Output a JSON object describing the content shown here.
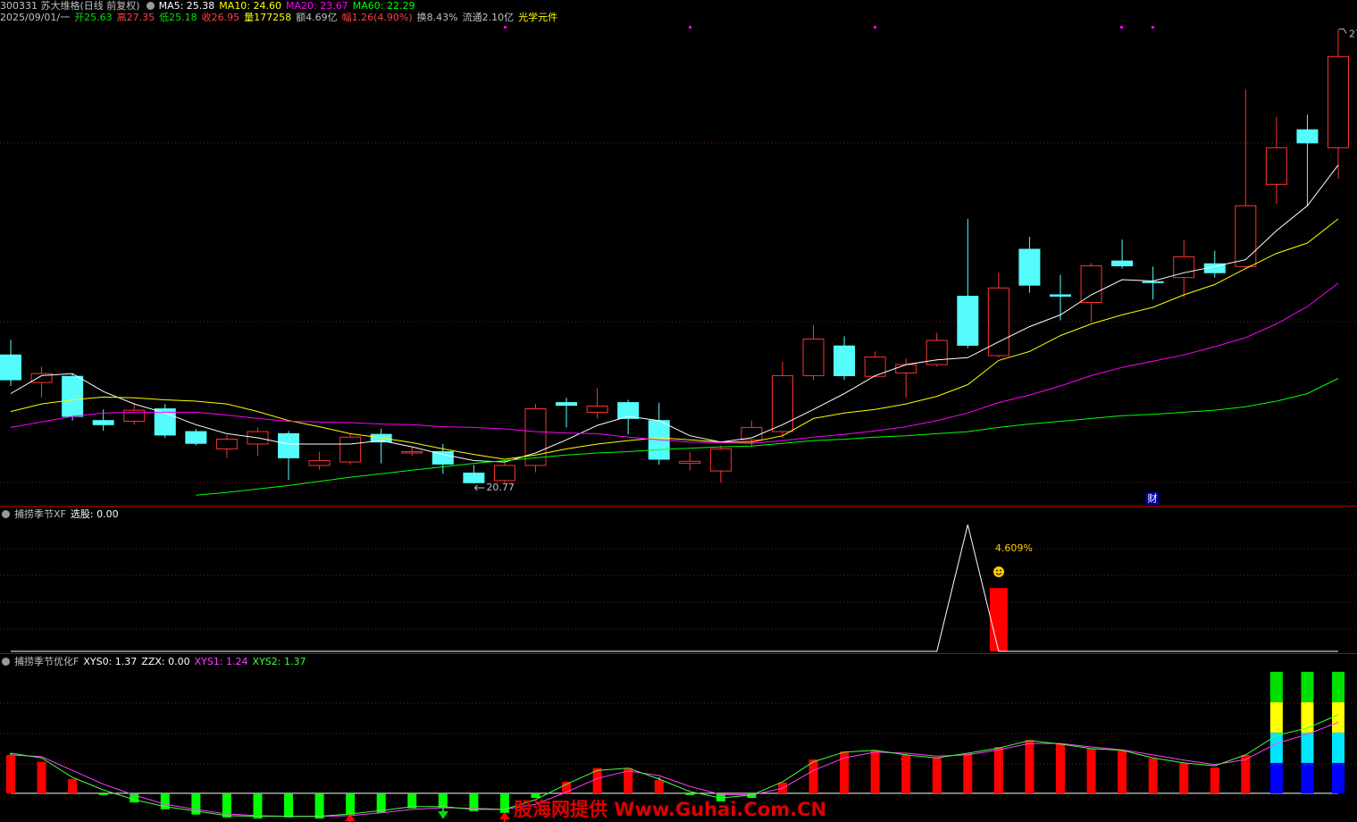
{
  "chart_data": [
    {
      "type": "candlestick",
      "title": "300331 苏大维格(日线 前复权)",
      "info": [
        {
          "text": "2025/09/01/一",
          "color": "#c0c0c0"
        },
        {
          "text": "开25.63",
          "color": "#00e000"
        },
        {
          "text": "高27.35",
          "color": "#ff4040"
        },
        {
          "text": "低25.18",
          "color": "#00e000"
        },
        {
          "text": "收26.95",
          "color": "#ff4040"
        },
        {
          "text": "量177258",
          "color": "#ffff00"
        },
        {
          "text": "额4.69亿",
          "color": "#c0c0c0"
        },
        {
          "text": "幅1.26(4.90%)",
          "color": "#ff4040"
        },
        {
          "text": "换8.43%",
          "color": "#c0c0c0"
        },
        {
          "text": "流通2.10亿",
          "color": "#c0c0c0"
        },
        {
          "text": "光学元件",
          "color": "#ffff00"
        }
      ],
      "event_label": "财",
      "up_color": "#ff3232",
      "down_color": "#54fcfc",
      "ylim": [
        20.46,
        27.51
      ],
      "open": [
        22.63,
        22.23,
        22.32,
        21.68,
        21.67,
        21.85,
        21.52,
        21.27,
        21.34,
        21.49,
        21.03,
        21.08,
        21.48,
        21.21,
        21.23,
        20.92,
        20.81,
        21.03,
        21.94,
        21.8,
        21.94,
        21.68,
        21.06,
        20.95,
        21.4,
        21.52,
        22.33,
        22.76,
        22.32,
        22.37,
        22.49,
        23.48,
        22.62,
        24.16,
        23.5,
        23.39,
        23.99,
        23.69,
        23.75,
        23.95,
        23.91,
        25.1,
        25.89,
        25.63
      ],
      "high": [
        22.85,
        22.46,
        22.36,
        21.84,
        21.94,
        21.92,
        21.56,
        21.47,
        21.58,
        21.53,
        21.23,
        21.49,
        21.56,
        21.3,
        21.34,
        21.04,
        21.1,
        21.92,
        22.01,
        22.15,
        21.98,
        21.94,
        21.23,
        21.32,
        21.68,
        22.53,
        23.06,
        22.9,
        22.68,
        22.58,
        22.95,
        24.6,
        23.82,
        24.34,
        23.79,
        23.96,
        24.3,
        23.91,
        24.3,
        24.14,
        26.47,
        26.08,
        26.11,
        27.35
      ],
      "low": [
        22.18,
        22.01,
        21.68,
        21.53,
        21.62,
        21.43,
        21.32,
        21.14,
        21.17,
        20.82,
        20.97,
        21.04,
        21.06,
        21.17,
        20.91,
        20.77,
        20.78,
        20.93,
        21.58,
        21.71,
        21.48,
        21.04,
        20.96,
        20.78,
        21.3,
        21.43,
        22.27,
        22.27,
        22.31,
        22.01,
        22.46,
        22.73,
        22.59,
        23.53,
        23.13,
        23.11,
        23.88,
        23.43,
        23.46,
        23.75,
        23.88,
        24.82,
        24.79,
        25.18
      ],
      "close": [
        22.27,
        22.36,
        21.74,
        21.62,
        21.83,
        21.47,
        21.35,
        21.41,
        21.52,
        21.14,
        21.1,
        21.44,
        21.37,
        21.23,
        21.05,
        20.78,
        21.03,
        21.85,
        21.9,
        21.89,
        21.71,
        21.12,
        21.09,
        21.27,
        21.58,
        22.33,
        22.86,
        22.33,
        22.6,
        22.49,
        22.84,
        22.77,
        23.6,
        23.64,
        23.48,
        23.92,
        23.92,
        23.68,
        24.05,
        23.82,
        24.79,
        25.63,
        25.7,
        26.95
      ],
      "series": [
        {
          "name": "MA5",
          "color": "#ffffff",
          "last_label": "25.38",
          "values": [
            22.07,
            22.33,
            22.36,
            22.1,
            21.92,
            21.79,
            21.62,
            21.49,
            21.43,
            21.34,
            21.34,
            21.34,
            21.39,
            21.3,
            21.19,
            21.1,
            21.08,
            21.21,
            21.4,
            21.61,
            21.74,
            21.68,
            21.46,
            21.37,
            21.43,
            21.62,
            21.84,
            22.07,
            22.33,
            22.49,
            22.56,
            22.59,
            22.82,
            23.04,
            23.21,
            23.5,
            23.72,
            23.7,
            23.82,
            23.91,
            24.01,
            24.43,
            24.79,
            25.38
          ]
        },
        {
          "name": "MA10",
          "color": "#ffff00",
          "last_label": "24.60",
          "values": [
            21.81,
            21.92,
            21.98,
            22.02,
            22.01,
            21.98,
            21.96,
            21.92,
            21.81,
            21.68,
            21.59,
            21.49,
            21.43,
            21.36,
            21.27,
            21.19,
            21.12,
            21.18,
            21.27,
            21.34,
            21.39,
            21.43,
            21.4,
            21.37,
            21.37,
            21.46,
            21.71,
            21.79,
            21.84,
            21.92,
            22.03,
            22.2,
            22.55,
            22.68,
            22.91,
            23.08,
            23.21,
            23.32,
            23.5,
            23.65,
            23.88,
            24.1,
            24.25,
            24.6
          ]
        },
        {
          "name": "MA20",
          "color": "#ff00ff",
          "last_label": "23.67",
          "values": [
            21.58,
            21.66,
            21.74,
            21.79,
            21.8,
            21.8,
            21.8,
            21.76,
            21.71,
            21.67,
            21.66,
            21.65,
            21.63,
            21.62,
            21.59,
            21.58,
            21.56,
            21.52,
            21.5,
            21.49,
            21.44,
            21.4,
            21.37,
            21.36,
            21.35,
            21.39,
            21.44,
            21.48,
            21.53,
            21.59,
            21.68,
            21.79,
            21.94,
            22.05,
            22.18,
            22.33,
            22.45,
            22.54,
            22.63,
            22.75,
            22.88,
            23.08,
            23.33,
            23.67
          ]
        },
        {
          "name": "MA60",
          "color": "#00ff00",
          "last_label": "22.29",
          "values": [
            null,
            null,
            null,
            null,
            null,
            null,
            20.6,
            20.64,
            20.69,
            20.74,
            20.8,
            20.86,
            20.91,
            20.96,
            21.01,
            21.06,
            21.1,
            21.14,
            21.18,
            21.21,
            21.23,
            21.26,
            21.28,
            21.3,
            21.31,
            21.35,
            21.39,
            21.41,
            21.44,
            21.46,
            21.49,
            21.52,
            21.58,
            21.63,
            21.67,
            21.71,
            21.75,
            21.77,
            21.8,
            21.83,
            21.88,
            21.96,
            22.07,
            22.29
          ]
        }
      ]
    },
    {
      "type": "signal",
      "title": "捕捞季节XF",
      "ylim": [
        0,
        1.03
      ],
      "series": [
        {
          "name": "选股",
          "color": "#ffffff",
          "last_label": "0.00",
          "values": [
            0,
            0,
            0,
            0,
            0,
            0,
            0,
            0,
            0,
            0,
            0,
            0,
            0,
            0,
            0,
            0,
            0,
            0,
            0,
            0,
            0,
            0,
            0,
            0,
            0,
            0,
            0,
            0,
            0,
            0,
            0,
            1,
            0,
            0,
            0,
            0,
            0,
            0,
            0,
            0,
            0,
            0,
            0,
            0
          ]
        }
      ],
      "bars": {
        "color": "#ff0000",
        "values": [
          null,
          null,
          null,
          null,
          null,
          null,
          null,
          null,
          null,
          null,
          null,
          null,
          null,
          null,
          null,
          null,
          null,
          null,
          null,
          null,
          null,
          null,
          null,
          null,
          null,
          null,
          null,
          null,
          null,
          null,
          null,
          null,
          0.5,
          null,
          null,
          null,
          null,
          null,
          null,
          null,
          null,
          null,
          null,
          null
        ]
      },
      "annotation": "4.609%",
      "annotation_color": "#ffcc00"
    },
    {
      "type": "oscillator",
      "title": "捕捞季节优化F",
      "ylim": [
        -0.5,
        2.15
      ],
      "readouts": [
        {
          "name": "XYS0",
          "label": "1.37",
          "color": "#ffffff"
        },
        {
          "name": "ZZX",
          "label": "0.00",
          "color": "#ffffff"
        }
      ],
      "bars": {
        "up_color": "#ff0000",
        "down_color": "#00ff00",
        "values": [
          0.67,
          0.55,
          0.25,
          -0.03,
          -0.16,
          -0.28,
          -0.37,
          -0.42,
          -0.44,
          -0.42,
          -0.44,
          -0.37,
          -0.34,
          -0.26,
          -0.26,
          -0.31,
          -0.34,
          -0.08,
          0.2,
          0.44,
          0.44,
          0.23,
          -0.03,
          -0.14,
          -0.08,
          0.19,
          0.59,
          0.73,
          0.75,
          0.67,
          0.62,
          0.7,
          0.81,
          0.93,
          0.87,
          0.78,
          0.75,
          0.61,
          0.53,
          0.45,
          0.67,
          null,
          null,
          null
        ]
      },
      "stack": [
        {
          "color": "#0000ff",
          "values": [
            null,
            null,
            null,
            null,
            null,
            null,
            null,
            null,
            null,
            null,
            null,
            null,
            null,
            null,
            null,
            null,
            null,
            null,
            null,
            null,
            null,
            null,
            null,
            null,
            null,
            null,
            null,
            null,
            null,
            null,
            null,
            null,
            null,
            null,
            null,
            null,
            null,
            null,
            null,
            null,
            null,
            0.53,
            0.53,
            0.53
          ]
        },
        {
          "color": "#00e5ff",
          "values": [
            null,
            null,
            null,
            null,
            null,
            null,
            null,
            null,
            null,
            null,
            null,
            null,
            null,
            null,
            null,
            null,
            null,
            null,
            null,
            null,
            null,
            null,
            null,
            null,
            null,
            null,
            null,
            null,
            null,
            null,
            null,
            null,
            null,
            null,
            null,
            null,
            null,
            null,
            null,
            null,
            null,
            0.53,
            0.53,
            0.53
          ]
        },
        {
          "color": "#ffff00",
          "values": [
            null,
            null,
            null,
            null,
            null,
            null,
            null,
            null,
            null,
            null,
            null,
            null,
            null,
            null,
            null,
            null,
            null,
            null,
            null,
            null,
            null,
            null,
            null,
            null,
            null,
            null,
            null,
            null,
            null,
            null,
            null,
            null,
            null,
            null,
            null,
            null,
            null,
            null,
            null,
            null,
            null,
            0.53,
            0.53,
            0.53
          ]
        },
        {
          "color": "#00e000",
          "values": [
            null,
            null,
            null,
            null,
            null,
            null,
            null,
            null,
            null,
            null,
            null,
            null,
            null,
            null,
            null,
            null,
            null,
            null,
            null,
            null,
            null,
            null,
            null,
            null,
            null,
            null,
            null,
            null,
            null,
            null,
            null,
            null,
            null,
            null,
            null,
            null,
            null,
            null,
            null,
            null,
            null,
            0.53,
            0.53,
            0.53
          ]
        }
      ],
      "series": [
        {
          "name": "XYS1",
          "color": "#ff40ff",
          "last_label": "1.24",
          "values": [
            0.67,
            0.64,
            0.4,
            0.16,
            -0.03,
            -0.19,
            -0.28,
            -0.36,
            -0.39,
            -0.4,
            -0.4,
            -0.39,
            -0.34,
            -0.28,
            -0.25,
            -0.26,
            -0.28,
            -0.19,
            0.02,
            0.26,
            0.39,
            0.31,
            0.12,
            -0.02,
            -0.03,
            0.09,
            0.4,
            0.62,
            0.72,
            0.7,
            0.65,
            0.67,
            0.76,
            0.87,
            0.87,
            0.81,
            0.76,
            0.67,
            0.58,
            0.5,
            0.59,
            0.87,
            1.03,
            1.24
          ]
        },
        {
          "name": "XYS2",
          "color": "#40ff40",
          "last_label": "1.37",
          "values": [
            0.7,
            0.62,
            0.28,
            0.06,
            -0.11,
            -0.23,
            -0.31,
            -0.39,
            -0.4,
            -0.4,
            -0.4,
            -0.36,
            -0.3,
            -0.23,
            -0.23,
            -0.28,
            -0.28,
            -0.11,
            0.16,
            0.4,
            0.44,
            0.25,
            0.03,
            -0.08,
            -0.03,
            0.2,
            0.55,
            0.72,
            0.75,
            0.67,
            0.62,
            0.7,
            0.79,
            0.92,
            0.86,
            0.78,
            0.75,
            0.62,
            0.53,
            0.48,
            0.67,
            1.01,
            1.14,
            1.37
          ]
        }
      ]
    }
  ],
  "watermark": "股海网提供 Www.Guhai.Com.CN"
}
